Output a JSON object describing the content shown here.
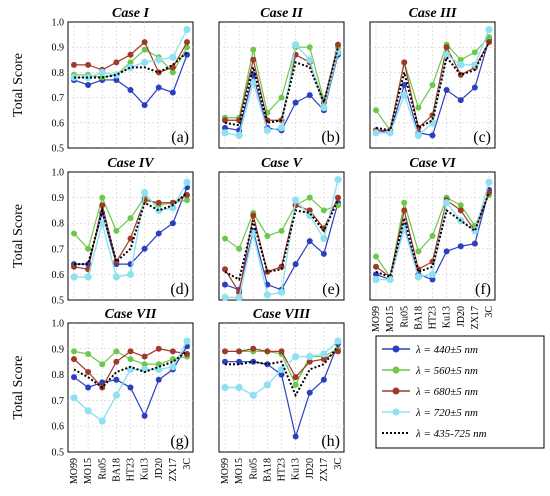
{
  "figure": {
    "ylabel": "Total Score",
    "legend": [
      "λ = 440±5 nm",
      "λ = 560±5 nm",
      "λ = 680±5 nm",
      "λ = 720±5 nm",
      "λ = 435-725 nm"
    ],
    "series_colors": [
      "#2b3fbf",
      "#6cc84a",
      "#a0392a",
      "#8fe0f0",
      "#000000"
    ]
  },
  "chart_data": [
    {
      "type": "line",
      "title": "Case I",
      "tag": "(a)",
      "categories": [
        "MO99",
        "MO15",
        "Ru05",
        "BA18",
        "HT23",
        "Ku13",
        "JD20",
        "ZX17",
        "3C"
      ],
      "ylim": [
        0.5,
        1.0
      ],
      "yticks": [
        0.5,
        0.6,
        0.7,
        0.8,
        0.9,
        1.0
      ],
      "grid": true,
      "series": [
        {
          "name": "λ = 440±5 nm",
          "values": [
            0.77,
            0.75,
            0.77,
            0.77,
            0.73,
            0.67,
            0.74,
            0.72,
            0.87
          ]
        },
        {
          "name": "λ = 560±5 nm",
          "values": [
            0.79,
            0.79,
            0.78,
            0.79,
            0.84,
            0.89,
            0.86,
            0.8,
            0.9
          ]
        },
        {
          "name": "λ = 680±5 nm",
          "values": [
            0.83,
            0.83,
            0.81,
            0.84,
            0.87,
            0.92,
            0.8,
            0.82,
            0.92
          ]
        },
        {
          "name": "λ = 720±5 nm",
          "values": [
            0.78,
            0.78,
            0.8,
            0.79,
            0.82,
            0.84,
            0.85,
            0.86,
            0.97
          ]
        },
        {
          "name": "λ = 435-725 nm",
          "values": [
            0.78,
            0.78,
            0.78,
            0.79,
            0.82,
            0.82,
            0.8,
            0.83,
            0.88
          ]
        }
      ]
    },
    {
      "type": "line",
      "title": "Case II",
      "tag": "(b)",
      "categories": [
        "MO99",
        "MO15",
        "Ru05",
        "BA18",
        "HT23",
        "Ku13",
        "JD20",
        "ZX17",
        "3C"
      ],
      "ylim": [
        0.5,
        1.0
      ],
      "yticks": [
        0.5,
        0.6,
        0.7,
        0.8,
        0.9,
        1.0
      ],
      "grid": true,
      "series": [
        {
          "name": "λ = 440±5 nm",
          "values": [
            0.58,
            0.57,
            0.79,
            0.58,
            0.57,
            0.68,
            0.71,
            0.65,
            0.87
          ]
        },
        {
          "name": "λ = 560±5 nm",
          "values": [
            0.62,
            0.62,
            0.89,
            0.64,
            0.7,
            0.9,
            0.9,
            0.69,
            0.9
          ]
        },
        {
          "name": "λ = 680±5 nm",
          "values": [
            0.61,
            0.61,
            0.85,
            0.61,
            0.61,
            0.87,
            0.84,
            0.68,
            0.91
          ]
        },
        {
          "name": "λ = 720±5 nm",
          "values": [
            0.56,
            0.55,
            0.76,
            0.57,
            0.58,
            0.91,
            0.85,
            0.66,
            0.88
          ]
        },
        {
          "name": "λ = 435-725 nm",
          "values": [
            0.6,
            0.59,
            0.82,
            0.6,
            0.61,
            0.84,
            0.82,
            0.68,
            0.9
          ]
        }
      ]
    },
    {
      "type": "line",
      "title": "Case III",
      "tag": "(c)",
      "categories": [
        "MO99",
        "MO15",
        "Ru05",
        "BA18",
        "HT23",
        "Ku13",
        "JD20",
        "ZX17",
        "3C"
      ],
      "ylim": [
        0.5,
        1.0
      ],
      "yticks": [
        0.5,
        0.6,
        0.7,
        0.8,
        0.9,
        1.0
      ],
      "grid": true,
      "series": [
        {
          "name": "λ = 440±5 nm",
          "values": [
            0.57,
            0.56,
            0.75,
            0.56,
            0.55,
            0.73,
            0.69,
            0.74,
            0.93
          ]
        },
        {
          "name": "λ = 560±5 nm",
          "values": [
            0.65,
            0.57,
            0.84,
            0.66,
            0.75,
            0.91,
            0.85,
            0.88,
            0.94
          ]
        },
        {
          "name": "λ = 680±5 nm",
          "values": [
            0.57,
            0.57,
            0.84,
            0.58,
            0.63,
            0.9,
            0.79,
            0.82,
            0.92
          ]
        },
        {
          "name": "λ = 720±5 nm",
          "values": [
            0.56,
            0.56,
            0.71,
            0.55,
            0.6,
            0.87,
            0.83,
            0.83,
            0.97
          ]
        },
        {
          "name": "λ = 435-725 nm",
          "values": [
            0.58,
            0.57,
            0.8,
            0.58,
            0.61,
            0.86,
            0.79,
            0.81,
            0.92
          ]
        }
      ]
    },
    {
      "type": "line",
      "title": "Case IV",
      "tag": "(d)",
      "categories": [
        "MO99",
        "MO15",
        "Ru05",
        "BA18",
        "HT23",
        "Ku13",
        "JD20",
        "ZX17",
        "3C"
      ],
      "ylim": [
        0.5,
        1.0
      ],
      "yticks": [
        0.5,
        0.6,
        0.7,
        0.8,
        0.9,
        1.0
      ],
      "grid": true,
      "series": [
        {
          "name": "λ = 440±5 nm",
          "values": [
            0.64,
            0.64,
            0.84,
            0.64,
            0.64,
            0.7,
            0.76,
            0.8,
            0.94
          ]
        },
        {
          "name": "λ = 560±5 nm",
          "values": [
            0.76,
            0.7,
            0.9,
            0.77,
            0.82,
            0.9,
            0.87,
            0.88,
            0.89
          ]
        },
        {
          "name": "λ = 680±5 nm",
          "values": [
            0.63,
            0.62,
            0.87,
            0.65,
            0.74,
            0.89,
            0.88,
            0.88,
            0.91
          ]
        },
        {
          "name": "λ = 720±5 nm",
          "values": [
            0.59,
            0.59,
            0.8,
            0.59,
            0.6,
            0.92,
            0.85,
            0.86,
            0.96
          ]
        },
        {
          "name": "λ = 435-725 nm",
          "values": [
            0.64,
            0.64,
            0.85,
            0.65,
            0.7,
            0.88,
            0.85,
            0.87,
            0.92
          ]
        }
      ]
    },
    {
      "type": "line",
      "title": "Case V",
      "tag": "(e)",
      "categories": [
        "MO99",
        "MO15",
        "Ru05",
        "BA18",
        "HT23",
        "Ku13",
        "JD20",
        "ZX17",
        "3C"
      ],
      "ylim": [
        0.5,
        1.0
      ],
      "yticks": [
        0.5,
        0.6,
        0.7,
        0.8,
        0.9,
        1.0
      ],
      "grid": true,
      "series": [
        {
          "name": "λ = 440±5 nm",
          "values": [
            0.56,
            0.54,
            0.77,
            0.56,
            0.54,
            0.64,
            0.73,
            0.68,
            0.88
          ]
        },
        {
          "name": "λ = 560±5 nm",
          "values": [
            0.74,
            0.7,
            0.84,
            0.75,
            0.77,
            0.87,
            0.9,
            0.85,
            0.87
          ]
        },
        {
          "name": "λ = 680±5 nm",
          "values": [
            0.62,
            0.53,
            0.83,
            0.61,
            0.63,
            0.87,
            0.85,
            0.78,
            0.9
          ]
        },
        {
          "name": "λ = 720±5 nm",
          "values": [
            0.51,
            0.51,
            0.76,
            0.52,
            0.53,
            0.89,
            0.83,
            0.74,
            0.97
          ]
        },
        {
          "name": "λ = 435-725 nm",
          "values": [
            0.61,
            0.58,
            0.81,
            0.61,
            0.62,
            0.85,
            0.84,
            0.77,
            0.89
          ]
        }
      ]
    },
    {
      "type": "line",
      "title": "Case VI",
      "tag": "(f)",
      "categories": [
        "MO99",
        "MO15",
        "Ru05",
        "BA18",
        "HT23",
        "Ku13",
        "JD20",
        "ZX17",
        "3C"
      ],
      "ylim": [
        0.5,
        1.0
      ],
      "yticks": [
        0.5,
        0.6,
        0.7,
        0.8,
        0.9,
        1.0
      ],
      "grid": true,
      "series": [
        {
          "name": "λ = 440±5 nm",
          "values": [
            0.6,
            0.58,
            0.79,
            0.6,
            0.58,
            0.69,
            0.71,
            0.72,
            0.93
          ]
        },
        {
          "name": "λ = 560±5 nm",
          "values": [
            0.67,
            0.59,
            0.88,
            0.69,
            0.75,
            0.9,
            0.87,
            0.79,
            0.91
          ]
        },
        {
          "name": "λ = 680±5 nm",
          "values": [
            0.63,
            0.59,
            0.85,
            0.62,
            0.65,
            0.89,
            0.85,
            0.77,
            0.92
          ]
        },
        {
          "name": "λ = 720±5 nm",
          "values": [
            0.58,
            0.58,
            0.78,
            0.59,
            0.6,
            0.88,
            0.81,
            0.77,
            0.96
          ]
        },
        {
          "name": "λ = 435-725 nm",
          "values": [
            0.61,
            0.59,
            0.82,
            0.61,
            0.63,
            0.85,
            0.81,
            0.77,
            0.92
          ]
        }
      ]
    },
    {
      "type": "line",
      "title": "Case VII",
      "tag": "(g)",
      "categories": [
        "MO99",
        "MO15",
        "Ru05",
        "BA18",
        "HT23",
        "Ku13",
        "JD20",
        "ZX17",
        "3C"
      ],
      "ylim": [
        0.5,
        1.0
      ],
      "yticks": [
        0.5,
        0.6,
        0.7,
        0.8,
        0.9,
        1.0
      ],
      "grid": true,
      "series": [
        {
          "name": "λ = 440±5 nm",
          "values": [
            0.79,
            0.75,
            0.77,
            0.78,
            0.75,
            0.64,
            0.78,
            0.82,
            0.91
          ]
        },
        {
          "name": "λ = 560±5 nm",
          "values": [
            0.89,
            0.88,
            0.84,
            0.89,
            0.86,
            0.84,
            0.84,
            0.86,
            0.87
          ]
        },
        {
          "name": "λ = 680±5 nm",
          "values": [
            0.86,
            0.81,
            0.75,
            0.85,
            0.89,
            0.87,
            0.9,
            0.89,
            0.88
          ]
        },
        {
          "name": "λ = 720±5 nm",
          "values": [
            0.71,
            0.66,
            0.62,
            0.72,
            0.82,
            0.82,
            0.82,
            0.83,
            0.93
          ]
        },
        {
          "name": "λ = 435-725 nm",
          "values": [
            0.82,
            0.79,
            0.75,
            0.81,
            0.83,
            0.81,
            0.83,
            0.85,
            0.89
          ]
        }
      ]
    },
    {
      "type": "line",
      "title": "Case VIII",
      "tag": "(h)",
      "categories": [
        "MO99",
        "MO15",
        "Ru05",
        "BA18",
        "HT23",
        "Ku13",
        "JD20",
        "ZX17",
        "3C"
      ],
      "ylim": [
        0.5,
        1.0
      ],
      "yticks": [
        0.5,
        0.6,
        0.7,
        0.8,
        0.9,
        1.0
      ],
      "grid": true,
      "series": [
        {
          "name": "λ = 440±5 nm",
          "values": [
            0.85,
            0.85,
            0.85,
            0.84,
            0.8,
            0.56,
            0.73,
            0.78,
            0.92
          ]
        },
        {
          "name": "λ = 560±5 nm",
          "values": [
            0.89,
            0.89,
            0.89,
            0.89,
            0.88,
            0.76,
            0.87,
            0.87,
            0.9
          ]
        },
        {
          "name": "λ = 680±5 nm",
          "values": [
            0.89,
            0.89,
            0.9,
            0.89,
            0.89,
            0.79,
            0.85,
            0.86,
            0.89
          ]
        },
        {
          "name": "λ = 720±5 nm",
          "values": [
            0.75,
            0.75,
            0.72,
            0.76,
            0.82,
            0.87,
            0.87,
            0.88,
            0.93
          ]
        },
        {
          "name": "λ = 435-725 nm",
          "values": [
            0.84,
            0.84,
            0.85,
            0.84,
            0.85,
            0.72,
            0.82,
            0.84,
            0.91
          ]
        }
      ]
    }
  ]
}
